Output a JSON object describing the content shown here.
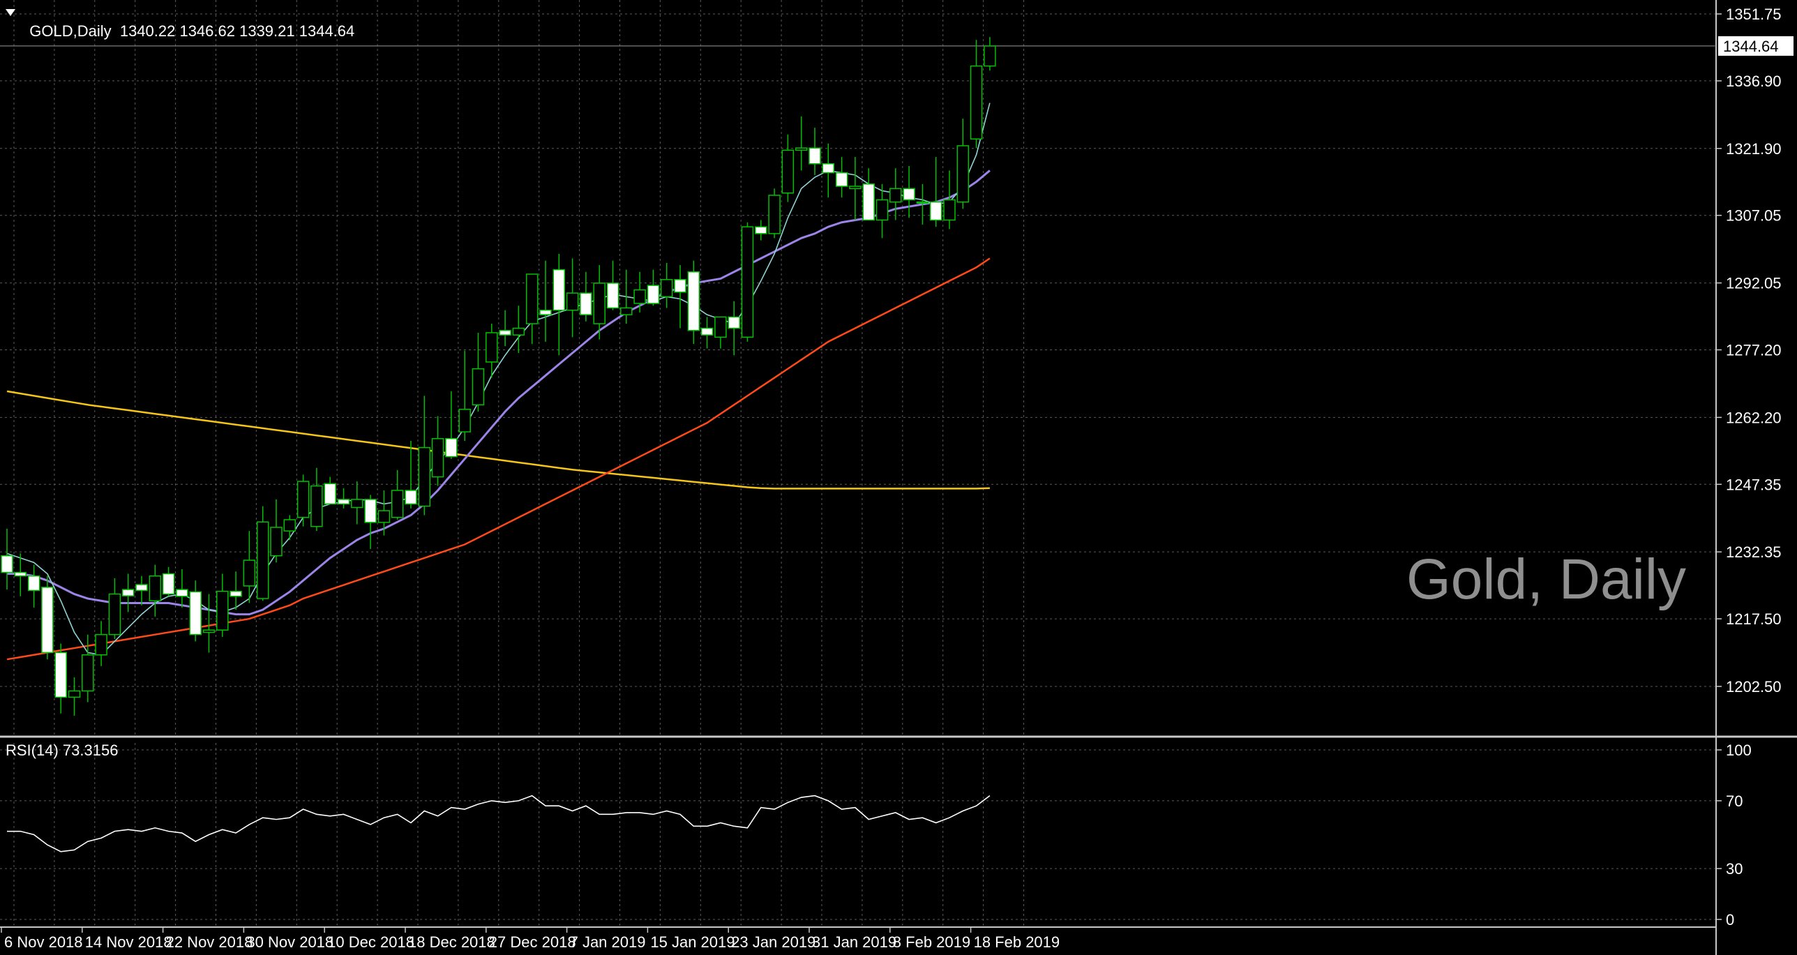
{
  "header": {
    "symbol": "GOLD,Daily",
    "ohlc": "1340.22 1346.62 1339.21 1344.64"
  },
  "watermark": "Gold, Daily",
  "rsi_label": "RSI(14) 73.3156",
  "colors": {
    "background": "#000000",
    "grid": "#5a5a5a",
    "axis": "#c8c8c8",
    "bull_candle": "#00c000",
    "bear_candle_body": "#ffffff",
    "ma_fast": "#8fd3d3",
    "ma_mid": "#9d84e8",
    "ma_slow": "#ff4a1a",
    "ma_long": "#f5c518",
    "rsi_line": "#ffffff"
  },
  "chart_data": {
    "type": "candlestick",
    "x": [
      "6 Nov 2018",
      "7 Nov 2018",
      "8 Nov 2018",
      "9 Nov 2018",
      "12 Nov 2018",
      "13 Nov 2018",
      "14 Nov 2018",
      "15 Nov 2018",
      "16 Nov 2018",
      "19 Nov 2018",
      "20 Nov 2018",
      "21 Nov 2018",
      "22 Nov 2018",
      "23 Nov 2018",
      "26 Nov 2018",
      "27 Nov 2018",
      "28 Nov 2018",
      "29 Nov 2018",
      "30 Nov 2018",
      "3 Dec 2018",
      "4 Dec 2018",
      "5 Dec 2018",
      "6 Dec 2018",
      "7 Dec 2018",
      "10 Dec 2018",
      "11 Dec 2018",
      "12 Dec 2018",
      "13 Dec 2018",
      "14 Dec 2018",
      "17 Dec 2018",
      "18 Dec 2018",
      "19 Dec 2018",
      "20 Dec 2018",
      "21 Dec 2018",
      "24 Dec 2018",
      "26 Dec 2018",
      "27 Dec 2018",
      "28 Dec 2018",
      "31 Dec 2018",
      "2 Jan 2019",
      "3 Jan 2019",
      "4 Jan 2019",
      "7 Jan 2019",
      "8 Jan 2019",
      "9 Jan 2019",
      "10 Jan 2019",
      "11 Jan 2019",
      "14 Jan 2019",
      "15 Jan 2019",
      "16 Jan 2019",
      "17 Jan 2019",
      "18 Jan 2019",
      "21 Jan 2019",
      "22 Jan 2019",
      "23 Jan 2019",
      "24 Jan 2019",
      "25 Jan 2019",
      "28 Jan 2019",
      "29 Jan 2019",
      "30 Jan 2019",
      "31 Jan 2019",
      "1 Feb 2019",
      "4 Feb 2019",
      "5 Feb 2019",
      "6 Feb 2019",
      "7 Feb 2019",
      "8 Feb 2019",
      "11 Feb 2019",
      "12 Feb 2019",
      "13 Feb 2019",
      "14 Feb 2019",
      "15 Feb 2019",
      "18 Feb 2019",
      "19 Feb 2019"
    ],
    "open": [
      1231.5,
      1227.8,
      1227.0,
      1224.5,
      1210.0,
      1200.1,
      1201.5,
      1209.5,
      1214.0,
      1224.0,
      1225.1,
      1221.5,
      1227.5,
      1224.0,
      1223.5,
      1214.5,
      1215.0,
      1223.6,
      1224.8,
      1222.0,
      1231.5,
      1237.0,
      1240.0,
      1238.0,
      1247.5,
      1244.0,
      1242.2,
      1244.0,
      1238.9,
      1240.0,
      1246.0,
      1242.5,
      1249.0,
      1257.5,
      1259.0,
      1265.0,
      1274.5,
      1281.5,
      1280.5,
      1283.0,
      1286.0,
      1295.0,
      1286.0,
      1289.8,
      1283.0,
      1292.0,
      1285.0,
      1287.5,
      1291.5,
      1289.0,
      1292.8,
      1294.5,
      1282.0,
      1280.0,
      1284.5,
      1280.0,
      1304.5,
      1303.0,
      1312.0,
      1321.5,
      1322.0,
      1318.5,
      1316.5,
      1313.0,
      1314.0,
      1306.0,
      1310.0,
      1313.0,
      1310.0,
      1310.0,
      1306.0,
      1310.0,
      1324.0,
      1340.2
    ],
    "high": [
      1237.5,
      1232.0,
      1229.5,
      1227.0,
      1212.0,
      1204.5,
      1214.0,
      1217.0,
      1226.5,
      1227.5,
      1227.0,
      1229.5,
      1229.0,
      1228.5,
      1226.0,
      1223.0,
      1227.5,
      1228.0,
      1237.0,
      1242.5,
      1244.0,
      1240.5,
      1249.5,
      1251.0,
      1249.0,
      1246.5,
      1248.0,
      1245.0,
      1246.0,
      1250.5,
      1257.0,
      1267.0,
      1262.5,
      1268.0,
      1277.0,
      1281.0,
      1283.0,
      1286.0,
      1287.0,
      1293.0,
      1297.0,
      1298.5,
      1297.5,
      1294.5,
      1296.0,
      1297.0,
      1295.0,
      1294.5,
      1295.0,
      1296.5,
      1296.0,
      1297.0,
      1284.5,
      1283.0,
      1288.0,
      1305.5,
      1306.0,
      1313.0,
      1325.0,
      1329.0,
      1326.5,
      1323.0,
      1320.0,
      1320.0,
      1317.5,
      1314.0,
      1317.5,
      1318.0,
      1314.0,
      1320.0,
      1317.0,
      1328.5,
      1346.0,
      1346.62
    ],
    "low": [
      1224.0,
      1222.5,
      1220.0,
      1208.5,
      1196.5,
      1196.0,
      1199.0,
      1207.0,
      1213.0,
      1219.0,
      1220.5,
      1218.0,
      1222.5,
      1220.0,
      1212.5,
      1210.0,
      1213.5,
      1219.5,
      1221.0,
      1221.5,
      1230.0,
      1235.0,
      1238.0,
      1237.0,
      1243.5,
      1242.0,
      1238.5,
      1233.0,
      1236.0,
      1239.5,
      1242.0,
      1240.5,
      1247.0,
      1253.0,
      1257.0,
      1263.5,
      1271.0,
      1278.0,
      1276.5,
      1278.5,
      1279.0,
      1276.0,
      1280.0,
      1283.5,
      1279.5,
      1286.0,
      1283.0,
      1285.5,
      1287.0,
      1286.5,
      1282.0,
      1278.5,
      1277.5,
      1277.5,
      1276.0,
      1279.0,
      1301.5,
      1302.0,
      1310.0,
      1317.0,
      1316.0,
      1311.0,
      1311.0,
      1306.0,
      1306.0,
      1302.0,
      1306.0,
      1306.5,
      1305.0,
      1304.5,
      1304.0,
      1308.5,
      1322.0,
      1339.21
    ],
    "close": [
      1227.8,
      1227.0,
      1223.8,
      1210.0,
      1200.1,
      1201.5,
      1209.5,
      1214.0,
      1223.0,
      1222.6,
      1223.8,
      1227.0,
      1223.0,
      1222.5,
      1214.0,
      1215.0,
      1223.6,
      1222.5,
      1230.5,
      1239.0,
      1237.8,
      1239.5,
      1248.0,
      1247.0,
      1243.0,
      1243.0,
      1244.0,
      1238.9,
      1241.5,
      1246.0,
      1243.0,
      1255.5,
      1257.5,
      1253.5,
      1264.0,
      1273.0,
      1281.0,
      1280.5,
      1282.0,
      1294.0,
      1285.0,
      1286.0,
      1289.8,
      1285.0,
      1292.0,
      1286.5,
      1286.5,
      1290.5,
      1287.5,
      1292.8,
      1290.0,
      1281.5,
      1280.5,
      1284.5,
      1282.0,
      1304.5,
      1303.0,
      1311.5,
      1321.5,
      1322.0,
      1318.5,
      1316.5,
      1313.5,
      1313.5,
      1306.0,
      1310.5,
      1313.0,
      1310.5,
      1310.0,
      1306.0,
      1310.5,
      1322.5,
      1340.2,
      1344.64
    ],
    "ma_fast": [
      1232.0,
      1231.0,
      1230.0,
      1227.5,
      1221.5,
      1214.5,
      1210.0,
      1209.5,
      1212.5,
      1215.5,
      1218.5,
      1221.0,
      1222.5,
      1223.0,
      1221.5,
      1219.5,
      1219.0,
      1220.0,
      1222.0,
      1227.5,
      1232.0,
      1235.5,
      1240.0,
      1242.0,
      1243.0,
      1243.5,
      1244.0,
      1243.8,
      1243.0,
      1243.5,
      1244.5,
      1248.5,
      1252.5,
      1255.5,
      1260.0,
      1265.5,
      1271.5,
      1276.0,
      1280.0,
      1283.5,
      1284.5,
      1285.5,
      1286.5,
      1287.5,
      1288.5,
      1289.5,
      1289.0,
      1288.5,
      1288.0,
      1289.0,
      1288.5,
      1287.0,
      1285.0,
      1284.0,
      1283.0,
      1287.0,
      1292.5,
      1298.5,
      1306.5,
      1313.0,
      1315.5,
      1317.0,
      1316.5,
      1316.0,
      1314.0,
      1312.5,
      1312.0,
      1311.0,
      1310.5,
      1309.5,
      1310.0,
      1313.5,
      1320.5,
      1332.0
    ],
    "ma_mid": [
      1227.5,
      1227.5,
      1227.0,
      1226.0,
      1224.5,
      1223.0,
      1222.0,
      1221.5,
      1221.0,
      1221.0,
      1221.0,
      1221.0,
      1221.0,
      1220.5,
      1220.0,
      1219.5,
      1219.0,
      1218.5,
      1218.5,
      1219.5,
      1221.5,
      1223.5,
      1226.0,
      1228.5,
      1231.0,
      1233.0,
      1235.0,
      1236.5,
      1237.5,
      1239.0,
      1240.5,
      1243.0,
      1246.0,
      1249.5,
      1253.0,
      1256.5,
      1260.0,
      1263.5,
      1266.5,
      1269.0,
      1271.5,
      1274.0,
      1276.5,
      1279.0,
      1281.5,
      1283.5,
      1285.5,
      1287.0,
      1288.5,
      1290.0,
      1291.0,
      1292.0,
      1292.5,
      1293.0,
      1294.5,
      1296.0,
      1297.5,
      1299.0,
      1300.5,
      1302.0,
      1303.0,
      1304.5,
      1305.5,
      1306.0,
      1306.5,
      1307.5,
      1308.5,
      1309.0,
      1309.5,
      1310.0,
      1311.0,
      1312.5,
      1314.5,
      1317.0
    ],
    "ma_slow": [
      1208.5,
      1209.0,
      1209.5,
      1210.0,
      1210.5,
      1211.0,
      1211.5,
      1212.0,
      1212.5,
      1213.0,
      1213.5,
      1214.0,
      1214.5,
      1215.0,
      1215.5,
      1216.0,
      1216.5,
      1217.0,
      1217.5,
      1218.5,
      1219.5,
      1220.5,
      1222.0,
      1223.0,
      1224.0,
      1225.0,
      1226.0,
      1227.0,
      1228.0,
      1229.0,
      1230.0,
      1231.0,
      1232.0,
      1233.0,
      1234.0,
      1235.5,
      1237.0,
      1238.5,
      1240.0,
      1241.5,
      1243.0,
      1244.5,
      1246.0,
      1247.5,
      1249.0,
      1250.5,
      1252.0,
      1253.5,
      1255.0,
      1256.5,
      1258.0,
      1259.5,
      1261.0,
      1263.0,
      1265.0,
      1267.0,
      1269.0,
      1271.0,
      1273.0,
      1275.0,
      1277.0,
      1279.0,
      1280.5,
      1282.0,
      1283.5,
      1285.0,
      1286.5,
      1288.0,
      1289.5,
      1291.0,
      1292.5,
      1294.0,
      1295.5,
      1297.5
    ],
    "ma_long": [
      1268.0,
      1267.5,
      1267.0,
      1266.5,
      1266.0,
      1265.5,
      1265.0,
      1264.6,
      1264.2,
      1263.8,
      1263.4,
      1263.0,
      1262.6,
      1262.2,
      1261.8,
      1261.4,
      1261.0,
      1260.6,
      1260.2,
      1259.8,
      1259.4,
      1259.0,
      1258.6,
      1258.2,
      1257.8,
      1257.4,
      1257.0,
      1256.6,
      1256.2,
      1255.8,
      1255.4,
      1255.0,
      1254.6,
      1254.2,
      1253.8,
      1253.4,
      1253.0,
      1252.6,
      1252.2,
      1251.8,
      1251.4,
      1251.0,
      1250.6,
      1250.3,
      1250.0,
      1249.7,
      1249.4,
      1249.1,
      1248.8,
      1248.5,
      1248.2,
      1247.9,
      1247.6,
      1247.3,
      1247.0,
      1246.7,
      1246.5,
      1246.4,
      1246.4,
      1246.4,
      1246.4,
      1246.4,
      1246.4,
      1246.4,
      1246.4,
      1246.4,
      1246.4,
      1246.4,
      1246.4,
      1246.4,
      1246.4,
      1246.4,
      1246.4,
      1246.5
    ],
    "rsi": [
      52,
      52,
      50,
      44,
      40,
      41,
      46,
      48,
      52,
      53,
      52,
      54,
      52,
      51,
      46,
      50,
      53,
      51,
      56,
      60,
      59,
      60,
      65,
      62,
      61,
      62,
      59,
      56,
      60,
      62,
      57,
      64,
      61,
      66,
      65,
      68,
      70,
      69,
      70,
      73,
      67,
      67,
      64,
      67,
      62,
      62,
      63,
      63,
      62,
      64,
      62,
      55,
      55,
      57,
      55,
      54,
      66,
      65,
      69,
      72,
      73,
      70,
      65,
      66,
      59,
      61,
      63,
      59,
      60,
      57,
      60,
      64,
      67,
      73
    ],
    "y_ticks": [
      "1351.75",
      "1336.90",
      "1321.90",
      "1307.05",
      "1292.05",
      "1277.20",
      "1262.20",
      "1247.35",
      "1232.35",
      "1217.50",
      "1202.50"
    ],
    "y_range": [
      1191.5,
      1351.75
    ],
    "current_price": "1344.64",
    "rsi_ticks": [
      "100",
      "70",
      "30",
      "0"
    ],
    "rsi_range": [
      0,
      100
    ],
    "x_ticks": [
      {
        "label": "6 Nov 2018",
        "index": 0
      },
      {
        "label": "14 Nov 2018",
        "index": 6
      },
      {
        "label": "22 Nov 2018",
        "index": 12
      },
      {
        "label": "30 Nov 2018",
        "index": 18
      },
      {
        "label": "10 Dec 2018",
        "index": 24
      },
      {
        "label": "18 Dec 2018",
        "index": 30
      },
      {
        "label": "27 Dec 2018",
        "index": 36
      },
      {
        "label": "7 Jan 2019",
        "index": 42
      },
      {
        "label": "15 Jan 2019",
        "index": 48
      },
      {
        "label": "23 Jan 2019",
        "index": 54
      },
      {
        "label": "31 Jan 2019",
        "index": 60
      },
      {
        "label": "8 Feb 2019",
        "index": 66
      },
      {
        "label": "18 Feb 2019",
        "index": 72
      }
    ]
  }
}
